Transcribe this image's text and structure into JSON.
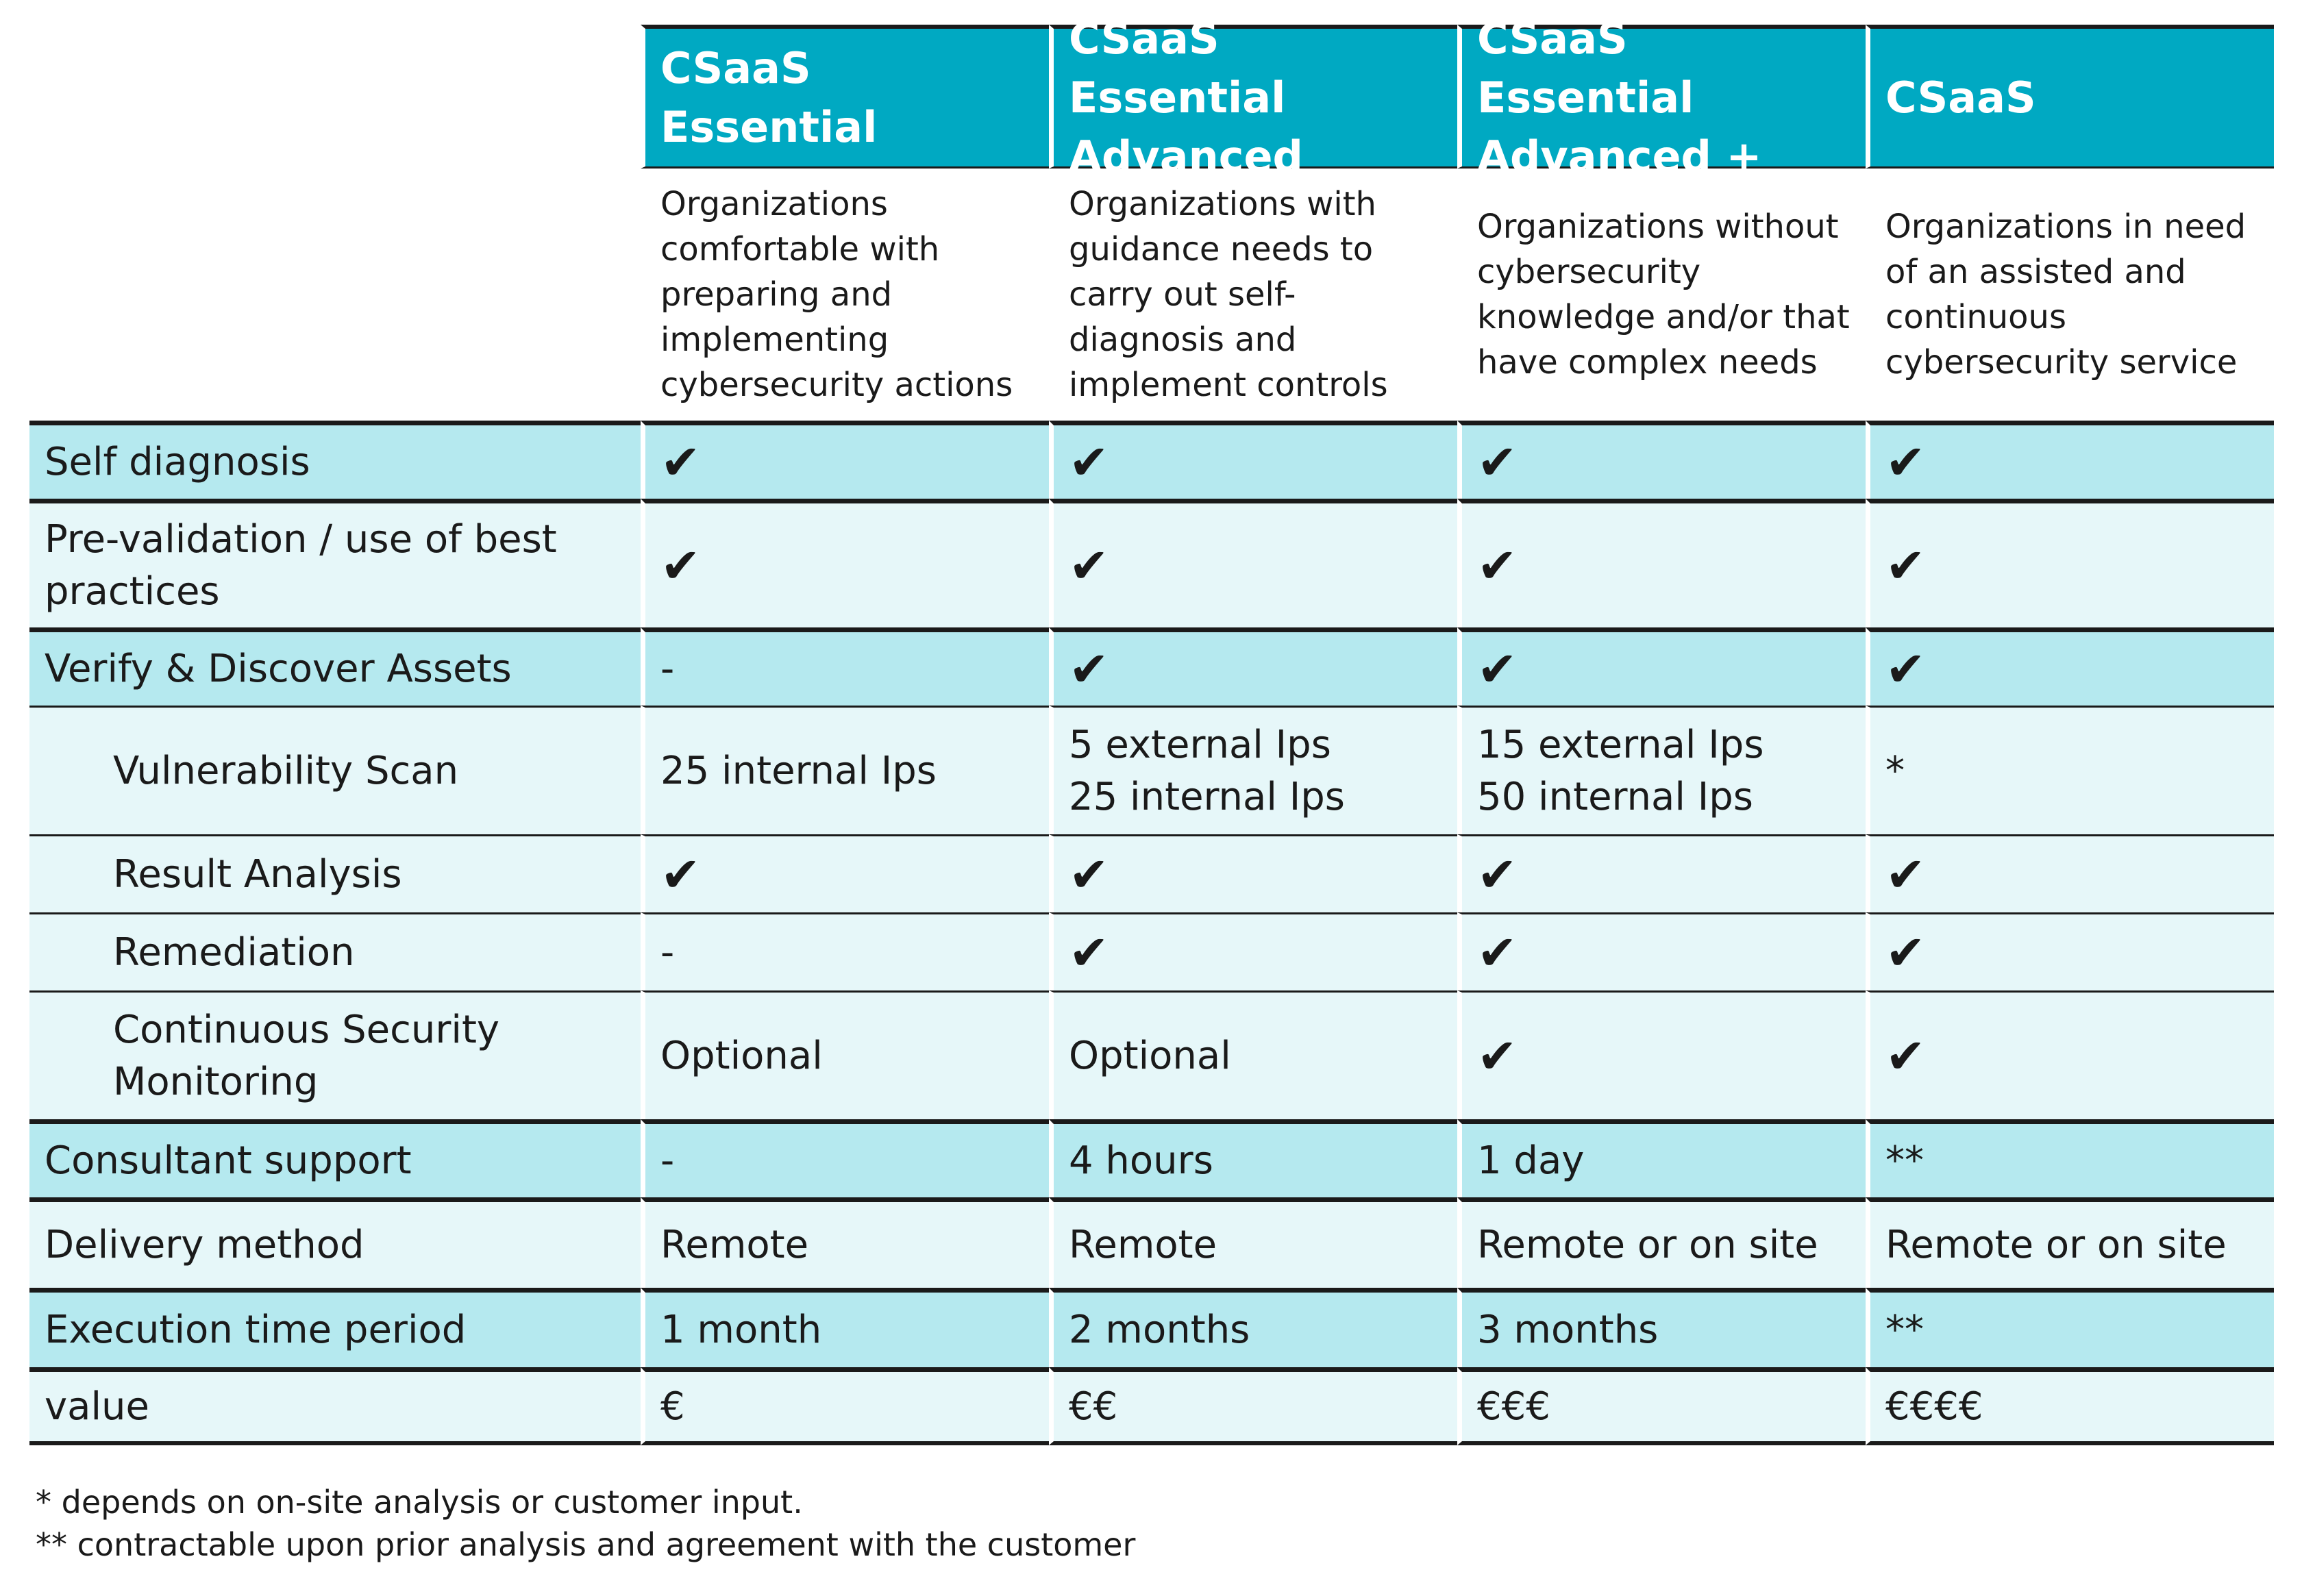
{
  "columns": [
    {
      "title": "CSaaS Essential",
      "description": "Organizations comfortable with preparing and implementing cybersecurity actions"
    },
    {
      "title": "CSaaS Essential Advanced",
      "description": "Organizations with guidance needs to carry out self-diagnosis and implement controls"
    },
    {
      "title": "CSaaS Essential Advanced +",
      "description": "Organizations without cybersecurity knowledge and/or that have complex needs"
    },
    {
      "title": "CSaaS",
      "description": "Organizations in need of an assisted and continuous cybersecurity service"
    }
  ],
  "check_symbol": "✔",
  "rows": [
    {
      "label": "Self diagnosis",
      "values": [
        "✔",
        "✔",
        "✔",
        "✔"
      ]
    },
    {
      "label": "Pre-validation / use of best practices",
      "values": [
        "✔",
        "✔",
        "✔",
        "✔"
      ]
    },
    {
      "label": "Verify & Discover Assets",
      "values": [
        "-",
        "✔",
        "✔",
        "✔"
      ]
    },
    {
      "label": "Vulnerability Scan",
      "values": [
        "25 internal Ips",
        "5 external Ips\n25 internal Ips",
        "15 external Ips\n50 internal Ips",
        "*"
      ]
    },
    {
      "label": "Result Analysis",
      "values": [
        "✔",
        "✔",
        "✔",
        "✔"
      ]
    },
    {
      "label": "Remediation",
      "values": [
        "-",
        "✔",
        "✔",
        "✔"
      ]
    },
    {
      "label": "Continuous Security Monitoring",
      "values": [
        "Optional",
        "Optional",
        "✔",
        "✔"
      ]
    },
    {
      "label": "Consultant support",
      "values": [
        "-",
        "4 hours",
        "1 day",
        "**"
      ]
    },
    {
      "label": "Delivery method",
      "values": [
        "Remote",
        "Remote",
        "Remote or on site",
        "Remote or on site"
      ]
    },
    {
      "label": "Execution time period",
      "values": [
        "1 month",
        "2 months",
        "3 months",
        "**"
      ]
    },
    {
      "label": "value",
      "values": [
        "€",
        "€€",
        "€€€",
        "€€€€"
      ]
    }
  ],
  "footnotes": [
    "* depends on on-site analysis or customer input.",
    "** contractable upon prior analysis and agreement with the customer"
  ],
  "colors": {
    "header": "#00a9c2",
    "row_dark": "#b5e9ef",
    "row_light": "#e6f7f9",
    "rule": "#1a1a1a"
  }
}
